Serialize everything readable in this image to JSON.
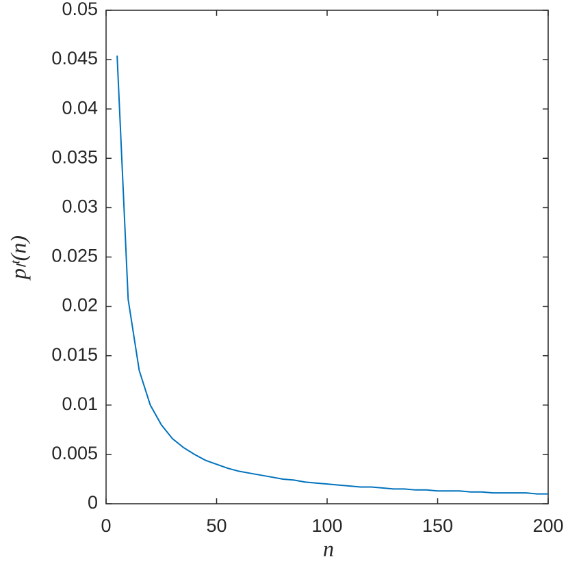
{
  "chart_data": {
    "type": "line",
    "xlabel": "n",
    "ylabel": "pₗᵗ(n)",
    "x": [
      5,
      10,
      15,
      20,
      25,
      30,
      35,
      40,
      45,
      50,
      55,
      60,
      65,
      70,
      75,
      80,
      85,
      90,
      95,
      100,
      105,
      110,
      115,
      120,
      125,
      130,
      135,
      140,
      145,
      150,
      155,
      160,
      165,
      170,
      175,
      180,
      185,
      190,
      195,
      200
    ],
    "series": [
      {
        "color": "#0072bd",
        "values": [
          0.0454,
          0.0207,
          0.0135,
          0.01,
          0.008,
          0.0066,
          0.0057,
          0.005,
          0.0044,
          0.004,
          0.0036,
          0.0033,
          0.0031,
          0.0029,
          0.0027,
          0.0025,
          0.0024,
          0.0022,
          0.0021,
          0.002,
          0.0019,
          0.0018,
          0.0017,
          0.0017,
          0.0016,
          0.0015,
          0.0015,
          0.0014,
          0.0014,
          0.0013,
          0.0013,
          0.0013,
          0.0012,
          0.0012,
          0.0011,
          0.0011,
          0.0011,
          0.0011,
          0.001,
          0.001
        ]
      }
    ],
    "xlim": [
      0,
      200
    ],
    "xticks": [
      0,
      50,
      100,
      150,
      200
    ],
    "ylim": [
      0,
      0.05
    ],
    "yticks": [
      0,
      0.005,
      0.01,
      0.015,
      0.02,
      0.025,
      0.03,
      0.035,
      0.04,
      0.045,
      0.05
    ]
  }
}
